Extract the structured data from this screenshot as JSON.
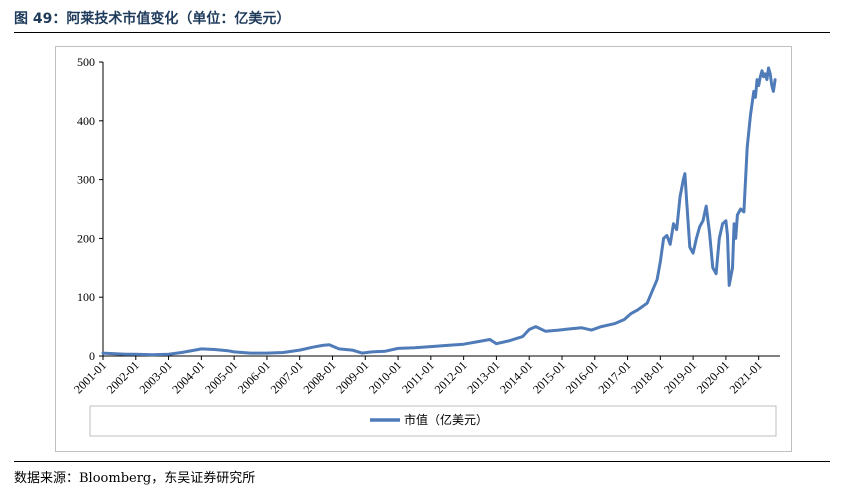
{
  "header": {
    "figure_title": "图 49：阿莱技术市值变化（单位：亿美元）"
  },
  "footer": {
    "source": "数据来源：Bloomberg，东吴证券研究所"
  },
  "colors": {
    "line": "#4f7cb8",
    "frame": "#bfbfbf"
  },
  "chart_data": {
    "type": "line",
    "title": "",
    "xlabel": "",
    "ylabel": "",
    "ylim": [
      0,
      500
    ],
    "yticks": [
      0,
      100,
      200,
      300,
      400,
      500
    ],
    "xticks": [
      "2001-01",
      "2002-01",
      "2003-01",
      "2004-01",
      "2005-01",
      "2006-01",
      "2007-01",
      "2008-01",
      "2009-01",
      "2010-01",
      "2011-01",
      "2012-01",
      "2013-01",
      "2014-01",
      "2015-01",
      "2016-01",
      "2017-01",
      "2018-01",
      "2019-01",
      "2020-01",
      "2021-01"
    ],
    "grid": false,
    "legend_position": "bottom",
    "series": [
      {
        "name": "市值（亿美元）",
        "x": [
          2001.0,
          2001.3,
          2001.7,
          2002.0,
          2002.5,
          2003.0,
          2003.4,
          2003.8,
          2004.0,
          2004.4,
          2004.8,
          2005.0,
          2005.5,
          2006.0,
          2006.5,
          2007.0,
          2007.4,
          2007.7,
          2007.9,
          2008.2,
          2008.6,
          2008.9,
          2009.2,
          2009.6,
          2010.0,
          2010.5,
          2011.0,
          2011.5,
          2012.0,
          2012.4,
          2012.8,
          2013.0,
          2013.4,
          2013.8,
          2014.0,
          2014.2,
          2014.5,
          2014.9,
          2015.2,
          2015.6,
          2015.9,
          2016.2,
          2016.6,
          2016.9,
          2017.1,
          2017.3,
          2017.6,
          2017.9,
          2018.0,
          2018.1,
          2018.2,
          2018.3,
          2018.4,
          2018.5,
          2018.6,
          2018.7,
          2018.75,
          2018.8,
          2018.9,
          2019.0,
          2019.1,
          2019.2,
          2019.3,
          2019.4,
          2019.5,
          2019.6,
          2019.7,
          2019.8,
          2019.9,
          2020.0,
          2020.05,
          2020.1,
          2020.2,
          2020.25,
          2020.3,
          2020.35,
          2020.45,
          2020.55,
          2020.65,
          2020.75,
          2020.85,
          2020.9,
          2020.95,
          2021.0,
          2021.05,
          2021.1,
          2021.15,
          2021.2,
          2021.25,
          2021.3,
          2021.35,
          2021.4,
          2021.45,
          2021.5
        ],
        "values": [
          5,
          4,
          3,
          3,
          2,
          3,
          6,
          10,
          12,
          11,
          9,
          7,
          5,
          5,
          6,
          10,
          15,
          18,
          19,
          12,
          10,
          5,
          7,
          8,
          13,
          14,
          16,
          18,
          20,
          24,
          28,
          21,
          26,
          33,
          45,
          50,
          42,
          44,
          46,
          48,
          44,
          50,
          55,
          62,
          72,
          78,
          90,
          130,
          160,
          200,
          205,
          190,
          225,
          215,
          270,
          300,
          310,
          265,
          185,
          175,
          200,
          220,
          230,
          255,
          210,
          150,
          140,
          200,
          225,
          230,
          205,
          120,
          150,
          225,
          200,
          240,
          250,
          245,
          355,
          410,
          450,
          440,
          470,
          460,
          475,
          485,
          475,
          480,
          470,
          490,
          480,
          460,
          450,
          470
        ]
      }
    ]
  }
}
